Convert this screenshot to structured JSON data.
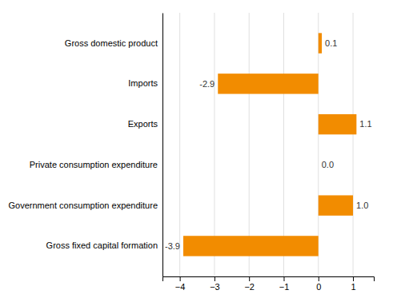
{
  "chart_data": {
    "type": "bar",
    "orientation": "horizontal",
    "categories": [
      "Gross fixed capital formation",
      "Government consumption expenditure",
      "Private consumption expenditure",
      "Exports",
      "Imports",
      "Gross domestic product"
    ],
    "values": [
      -3.9,
      1.0,
      0.0,
      1.1,
      -2.9,
      0.1
    ],
    "value_labels": [
      "-3.9",
      "1.0",
      "0.0",
      "1.1",
      "-2.9",
      "0.1"
    ],
    "data_labels": true,
    "color": "#F28C00",
    "xlim": [
      -4.5,
      1.6
    ],
    "xticks": [
      {
        "value": -4,
        "label": "−4"
      },
      {
        "value": -3,
        "label": "−3"
      },
      {
        "value": -2,
        "label": "−2"
      },
      {
        "value": -1,
        "label": "−1"
      },
      {
        "value": 0,
        "label": "0"
      },
      {
        "value": 1,
        "label": "1"
      }
    ],
    "grid": true
  }
}
